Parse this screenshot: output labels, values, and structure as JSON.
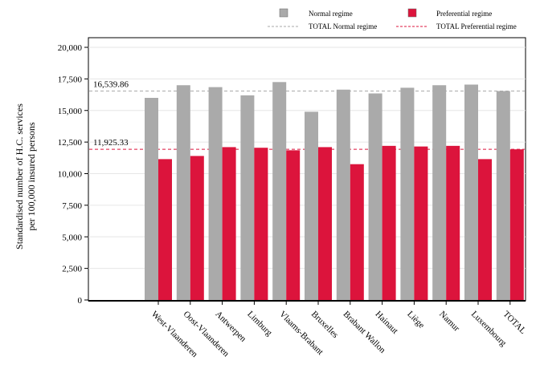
{
  "chart_data": {
    "type": "bar",
    "title": "",
    "xlabel": "",
    "ylabel_lines": [
      "Standardised number of H.C. services",
      "per 100,000 insured persons"
    ],
    "ylim": [
      0,
      20000
    ],
    "yticks": [
      0,
      2500,
      5000,
      7500,
      10000,
      12500,
      15000,
      17500,
      20000
    ],
    "ytick_labels": [
      "0",
      "2,500",
      "5,000",
      "7,500",
      "10,000",
      "12,500",
      "15,000",
      "17,500",
      "20,000"
    ],
    "grid": true,
    "legend_position": "top",
    "categories": [
      "West-Vlaanderen",
      "Oost-Vlaanderen",
      "Antwerpen",
      "Limburg",
      "Vlaams-Brabant",
      "Bruxelles",
      "Brabant Wallon",
      "Hainaut",
      "Liège",
      "Namur",
      "Luxembourg",
      "TOTAL"
    ],
    "series": [
      {
        "name": "Normal regime",
        "color": "#aaaaaa",
        "values": [
          16000,
          17000,
          16850,
          16200,
          17250,
          14900,
          16650,
          16350,
          16800,
          17000,
          17050,
          16539.86
        ]
      },
      {
        "name": "Preferential regime",
        "color": "#dc143c",
        "values": [
          11150,
          11400,
          12100,
          12050,
          11850,
          12100,
          10750,
          12200,
          12150,
          12200,
          11150,
          11925.33
        ]
      }
    ],
    "reference_lines": [
      {
        "name": "TOTAL Normal regime",
        "value": 16539.86,
        "label": "16,539.86",
        "color": "#aaaaaa"
      },
      {
        "name": "TOTAL Preferential regime",
        "value": 11925.33,
        "label": "11,925.33",
        "color": "#dc143c"
      }
    ]
  }
}
